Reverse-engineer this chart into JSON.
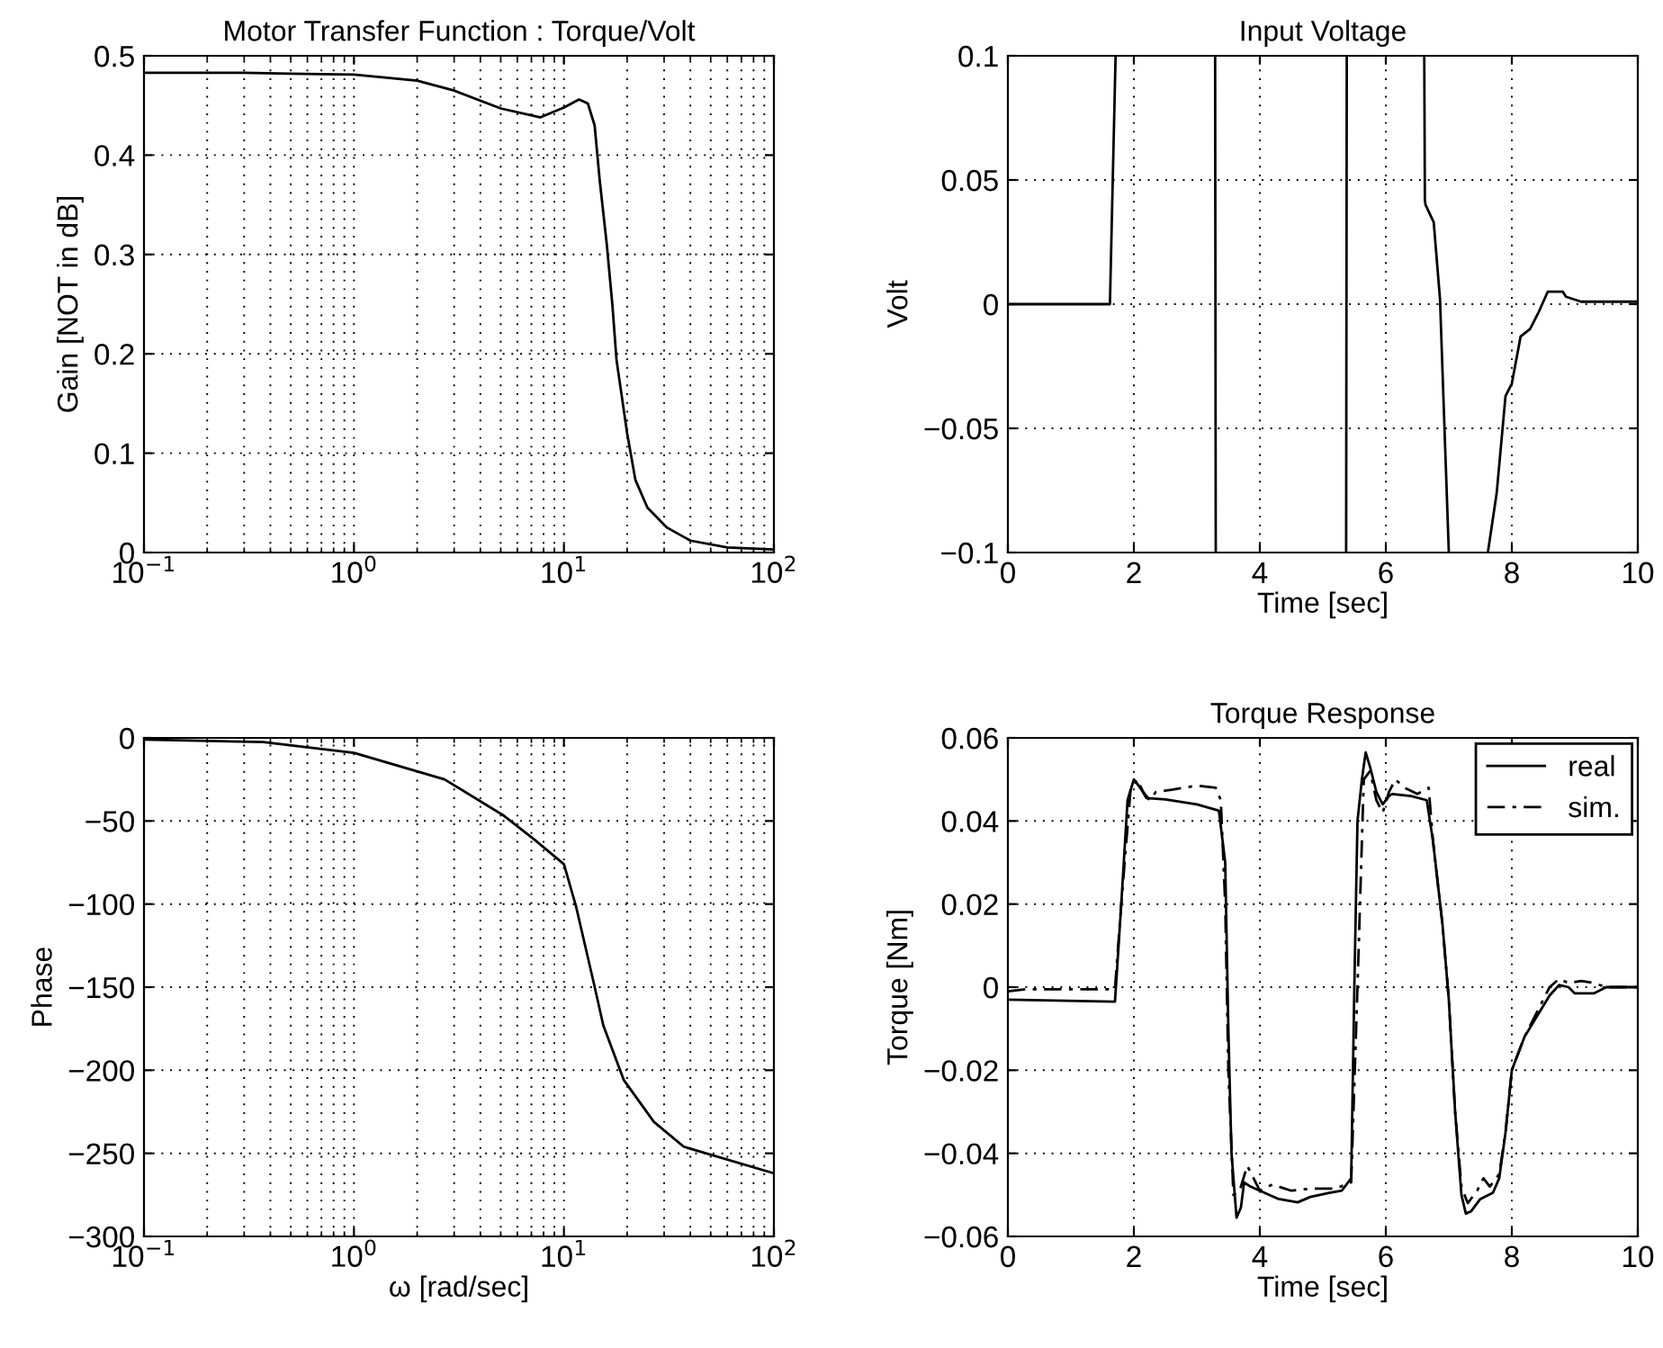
{
  "chart_data": [
    {
      "type": "line",
      "title": "Motor Transfer Function : Torque/Volt",
      "ylabel": "Gain [NOT in dB]",
      "log": "x",
      "grid": true,
      "x": [
        0.1,
        0.3,
        0.5,
        1,
        2,
        3,
        5,
        7.7,
        10,
        11.8,
        13,
        14,
        14.8,
        16,
        17,
        17.8,
        20,
        21.9,
        25,
        31,
        40,
        60,
        100
      ],
      "xlim": [
        0.1,
        100
      ],
      "ylim": [
        0,
        0.5
      ],
      "xticks": [
        {
          "value": 0.1,
          "label": "10$^{−1}$"
        },
        {
          "value": 1,
          "label": "10$^{0}$"
        },
        {
          "value": 10,
          "label": "10$^{1}$"
        },
        {
          "value": 100,
          "label": "10$^{2}$"
        }
      ],
      "yticks": [
        0,
        0.1,
        0.2,
        0.3,
        0.4,
        0.5
      ],
      "series": [
        {
          "color": "#000000",
          "line_style": "solid",
          "values": [
            0.483,
            0.483,
            0.482,
            0.481,
            0.475,
            0.465,
            0.447,
            0.438,
            0.448,
            0.456,
            0.452,
            0.43,
            0.375,
            0.31,
            0.25,
            0.194,
            0.12,
            0.073,
            0.045,
            0.025,
            0.012,
            0.005,
            0.003
          ]
        }
      ]
    },
    {
      "type": "line",
      "title": "Input Voltage",
      "xlabel": "Time [sec]",
      "ylabel": "Volt",
      "grid": true,
      "x": [
        0,
        1.62,
        1.71,
        1.72,
        3.29,
        3.3,
        3.31,
        5.37,
        5.38,
        5.39,
        6.61,
        6.62,
        6.63,
        6.76,
        6.86,
        7.0,
        7.01,
        7.61,
        7.62,
        7.76,
        7.9,
        8.0,
        8.14,
        8.29,
        8.43,
        8.57,
        8.81,
        8.86,
        9.1,
        10
      ],
      "xlim": [
        0,
        10
      ],
      "ylim": [
        -0.1,
        0.1
      ],
      "xticks": [
        0,
        2,
        4,
        6,
        8,
        10
      ],
      "yticks": [
        {
          "value": -0.1,
          "label": "−0.1"
        },
        {
          "value": -0.05,
          "label": "−0.05"
        },
        0,
        0.05,
        0.1
      ],
      "series": [
        {
          "color": "#000000",
          "line_style": "solid",
          "values": [
            0,
            0,
            0.1,
            null,
            0.1,
            -0.1,
            null,
            -0.1,
            0.1,
            null,
            0.1,
            0.042,
            0.04,
            0.033,
            0.002,
            -0.1,
            null,
            null,
            -0.1,
            -0.076,
            -0.037,
            -0.032,
            -0.013,
            -0.01,
            -0.003,
            0.005,
            0.005,
            0.003,
            0.001,
            0.001
          ]
        }
      ]
    },
    {
      "type": "line",
      "xlabel": "ω [rad/sec]",
      "ylabel": "Phase",
      "log": "x",
      "grid": true,
      "x": [
        0.1,
        0.37,
        1,
        2.7,
        5.2,
        7.2,
        10,
        11.4,
        13.9,
        15.4,
        19.3,
        26.8,
        37.2,
        100
      ],
      "xlim": [
        0.1,
        100
      ],
      "ylim": [
        -300,
        0
      ],
      "xticks": [
        {
          "value": 0.1,
          "label": "10$^{−1}$"
        },
        {
          "value": 1,
          "label": "10$^{0}$"
        },
        {
          "value": 10,
          "label": "10$^{1}$"
        },
        {
          "value": 100,
          "label": "10$^{2}$"
        }
      ],
      "yticks": [
        {
          "value": -300,
          "label": "−300"
        },
        {
          "value": -250,
          "label": "−250"
        },
        {
          "value": -200,
          "label": "−200"
        },
        {
          "value": -150,
          "label": "−150"
        },
        {
          "value": -100,
          "label": "−100"
        },
        {
          "value": -50,
          "label": "−50"
        },
        0
      ],
      "series": [
        {
          "color": "#000000",
          "line_style": "solid",
          "values": [
            -1,
            -2.5,
            -9,
            -25,
            -47,
            -61,
            -76,
            -101,
            -148,
            -173,
            -206,
            -231,
            -246,
            -262
          ]
        }
      ]
    },
    {
      "type": "line",
      "title": "Torque Response",
      "xlabel": "Time [sec]",
      "ylabel": "Torque [Nm]",
      "grid": true,
      "legend": "top right",
      "xlim": [
        0,
        10
      ],
      "ylim": [
        -0.06,
        0.06
      ],
      "xticks": [
        0,
        2,
        4,
        6,
        8,
        10
      ],
      "yticks": [
        {
          "value": -0.06,
          "label": "−0.06"
        },
        {
          "value": -0.04,
          "label": "−0.04"
        },
        {
          "value": -0.02,
          "label": "−0.02"
        },
        0,
        0.02,
        0.04,
        0.06
      ],
      "series": [
        {
          "name": "real",
          "color": "#000000",
          "line_style": "solid",
          "x": [
            0,
            1.7,
            1.8,
            1.9,
            2.0,
            2.1,
            2.2,
            2.5,
            3.0,
            3.35,
            3.45,
            3.5,
            3.55,
            3.63,
            3.7,
            3.75,
            3.85,
            4.0,
            4.3,
            4.6,
            4.8,
            5.1,
            5.3,
            5.45,
            5.5,
            5.55,
            5.62,
            5.68,
            5.75,
            5.85,
            5.95,
            6.05,
            6.1,
            6.4,
            6.65,
            6.75,
            6.9,
            7.0,
            7.1,
            7.2,
            7.27,
            7.35,
            7.5,
            7.7,
            7.8,
            7.9,
            8.0,
            8.2,
            8.4,
            8.6,
            8.75,
            8.9,
            9.0,
            9.3,
            9.5,
            10
          ],
          "values": [
            -0.003,
            -0.0035,
            0.02,
            0.045,
            0.05,
            0.048,
            0.0455,
            0.0452,
            0.044,
            0.0425,
            0.03,
            -0.01,
            -0.04,
            -0.0555,
            -0.053,
            -0.047,
            -0.048,
            -0.049,
            -0.051,
            -0.0518,
            -0.0505,
            -0.0495,
            -0.049,
            -0.046,
            0.0,
            0.04,
            0.05,
            0.0565,
            0.053,
            0.047,
            0.044,
            0.046,
            0.0465,
            0.046,
            0.045,
            0.035,
            0.015,
            -0.003,
            -0.03,
            -0.05,
            -0.0545,
            -0.054,
            -0.051,
            -0.0495,
            -0.046,
            -0.035,
            -0.02,
            -0.012,
            -0.007,
            -0.002,
            0.0005,
            0.0,
            -0.0015,
            -0.0015,
            0.0,
            0.0
          ]
        },
        {
          "name": "sim.",
          "color": "#000000",
          "line_style": "dashed",
          "x": [
            0,
            0.3,
            1.7,
            1.8,
            1.95,
            2.05,
            2.15,
            2.25,
            2.35,
            2.6,
            3.0,
            3.3,
            3.38,
            3.45,
            3.5,
            3.58,
            3.68,
            3.8,
            3.9,
            4.0,
            4.2,
            4.5,
            4.8,
            5.2,
            5.45,
            5.55,
            5.65,
            5.75,
            5.85,
            5.95,
            6.05,
            6.15,
            6.3,
            6.5,
            6.68,
            6.75,
            6.9,
            7.0,
            7.1,
            7.2,
            7.3,
            7.45,
            7.55,
            7.65,
            7.8,
            7.9,
            8.0,
            8.2,
            8.4,
            8.6,
            8.75,
            8.9,
            9.1,
            9.3,
            9.5,
            10
          ],
          "values": [
            -0.001,
            -0.0005,
            -0.0005,
            0.02,
            0.048,
            0.05,
            0.047,
            0.045,
            0.047,
            0.0475,
            0.0485,
            0.048,
            0.045,
            0.02,
            -0.02,
            -0.05,
            -0.049,
            -0.043,
            -0.046,
            -0.049,
            -0.0475,
            -0.049,
            -0.0485,
            -0.0485,
            -0.047,
            0.0,
            0.05,
            0.052,
            0.045,
            0.042,
            0.047,
            0.05,
            0.048,
            0.0465,
            0.048,
            0.035,
            0.015,
            -0.003,
            -0.03,
            -0.048,
            -0.052,
            -0.049,
            -0.046,
            -0.048,
            -0.045,
            -0.035,
            -0.02,
            -0.012,
            -0.006,
            0.0,
            0.002,
            0.001,
            0.0015,
            0.001,
            0.0,
            0.0
          ]
        }
      ]
    }
  ]
}
